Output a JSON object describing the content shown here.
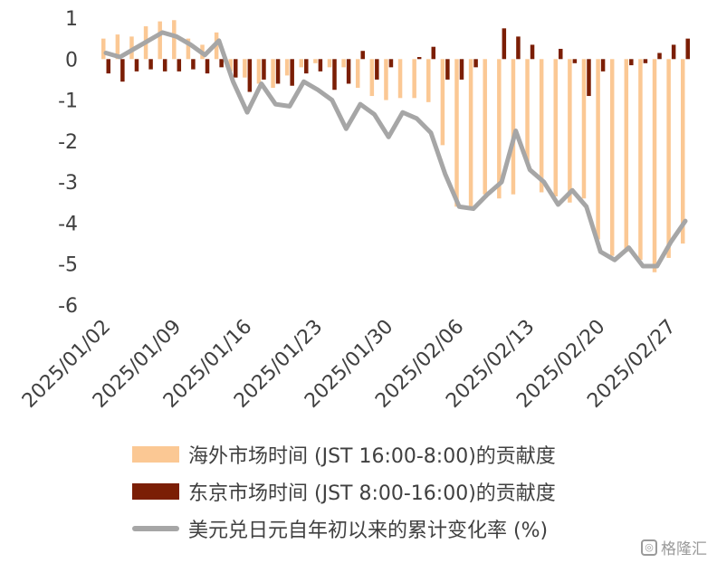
{
  "chart_data": {
    "type": "bar",
    "title": "",
    "xlabel": "",
    "ylabel": "",
    "ylim": [
      -6,
      1
    ],
    "yticks": [
      "1",
      "0",
      "-1",
      "-2",
      "-3",
      "-4",
      "-5",
      "-6"
    ],
    "xticks": [
      "2025/01/02",
      "2025/01/09",
      "2025/01/16",
      "2025/01/23",
      "2025/01/30",
      "2025/02/06",
      "2025/02/13",
      "2025/02/20",
      "2025/02/27"
    ],
    "categories": [
      "2025/01/02",
      "2025/01/03",
      "2025/01/06",
      "2025/01/07",
      "2025/01/08",
      "2025/01/09",
      "2025/01/10",
      "2025/01/13",
      "2025/01/14",
      "2025/01/15",
      "2025/01/16",
      "2025/01/17",
      "2025/01/20",
      "2025/01/21",
      "2025/01/22",
      "2025/01/23",
      "2025/01/24",
      "2025/01/27",
      "2025/01/28",
      "2025/01/29",
      "2025/01/30",
      "2025/01/31",
      "2025/02/03",
      "2025/02/04",
      "2025/02/05",
      "2025/02/06",
      "2025/02/07",
      "2025/02/10",
      "2025/02/11",
      "2025/02/12",
      "2025/02/13",
      "2025/02/14",
      "2025/02/17",
      "2025/02/18",
      "2025/02/19",
      "2025/02/20",
      "2025/02/21",
      "2025/02/24",
      "2025/02/25",
      "2025/02/26",
      "2025/02/27",
      "2025/02/28"
    ],
    "series": [
      {
        "name": "海外市场时间 (JST 16:00-8:00)的贡献度",
        "kind": "bar",
        "color": "#fbc894",
        "values": [
          0.5,
          0.6,
          0.55,
          0.8,
          0.92,
          0.95,
          0.5,
          0.35,
          0.65,
          -0.3,
          -0.45,
          -0.6,
          -0.7,
          -0.4,
          -0.2,
          -0.1,
          -0.2,
          -0.2,
          -0.7,
          -0.9,
          -1.0,
          -0.95,
          -0.95,
          -1.05,
          -2.1,
          -3.6,
          -3.65,
          -3.3,
          -3.4,
          -3.3,
          -2.5,
          -3.25,
          -3.35,
          -3.5,
          -3.4,
          -4.4,
          -4.8,
          -4.7,
          -4.9,
          -5.2,
          -4.85,
          -4.5
        ]
      },
      {
        "name": "东京市场时间 (JST 8:00-16:00)的贡献度",
        "kind": "bar",
        "color": "#7b1e05",
        "values": [
          -0.35,
          -0.55,
          -0.3,
          -0.25,
          -0.3,
          -0.3,
          -0.25,
          -0.35,
          -0.2,
          -0.45,
          -0.8,
          -0.5,
          -0.6,
          -0.65,
          -0.35,
          -0.3,
          -0.75,
          -0.6,
          0.2,
          -0.5,
          -0.2,
          0.0,
          0.05,
          0.3,
          -0.5,
          -0.5,
          -0.2,
          0.0,
          0.75,
          0.55,
          0.35,
          0.0,
          0.25,
          -0.1,
          -0.9,
          -0.3,
          0.0,
          -0.15,
          -0.1,
          0.15,
          0.35,
          0.5
        ]
      },
      {
        "name": "美元兑日元自年初以来的累计变化率 (%)",
        "kind": "line",
        "color": "#a6a6a6",
        "values": [
          0.15,
          0.05,
          0.25,
          0.45,
          0.65,
          0.55,
          0.35,
          0.1,
          0.45,
          -0.55,
          -1.3,
          -0.6,
          -1.1,
          -1.15,
          -0.55,
          -0.75,
          -1.0,
          -1.7,
          -1.1,
          -1.35,
          -1.9,
          -1.3,
          -1.45,
          -1.8,
          -2.8,
          -3.6,
          -3.65,
          -3.3,
          -3.0,
          -1.75,
          -2.7,
          -3.0,
          -3.55,
          -3.2,
          -3.6,
          -4.7,
          -4.9,
          -4.6,
          -5.05,
          -5.05,
          -4.45,
          -3.95
        ]
      }
    ]
  },
  "legend": {
    "overseas": "海外市场时间 (JST 16:00-8:00)的贡献度",
    "tokyo": "东京市场时间 (JST 8:00-16:00)的贡献度",
    "line": "美元兑日元自年初以来的累计变化率 (%)"
  },
  "colors": {
    "overseas": "#fbc894",
    "tokyo": "#7b1e05",
    "line": "#a6a6a6",
    "text": "#404040"
  },
  "watermark": "格隆汇"
}
